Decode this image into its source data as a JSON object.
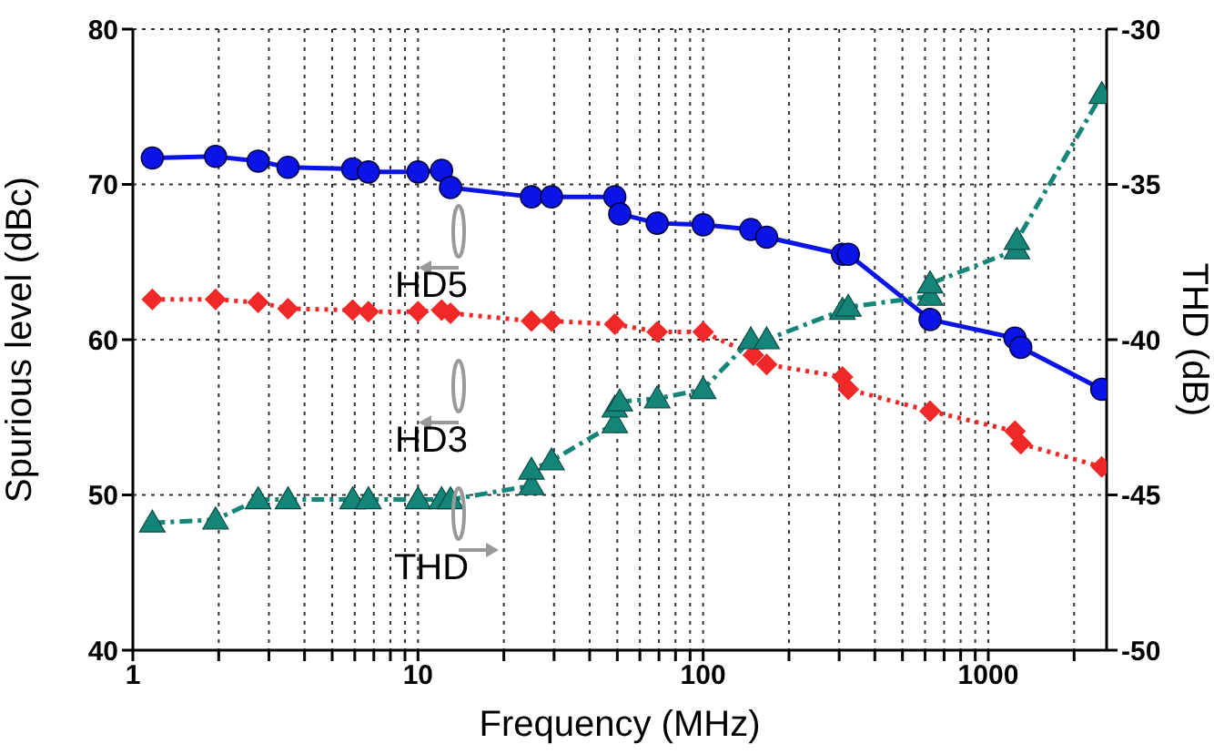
{
  "chart_data": {
    "type": "line",
    "xlabel": "Frequency (MHz)",
    "ylabel": "Spurious level (dBc)",
    "y2label": "THD (dB)",
    "log": "x",
    "grid": true,
    "xlim": [
      1,
      2600
    ],
    "xticks": [
      1,
      {
        "value": 2,
        "label": null
      },
      {
        "value": 3,
        "label": null
      },
      {
        "value": 4,
        "label": null
      },
      {
        "value": 5,
        "label": null
      },
      {
        "value": 6,
        "label": null
      },
      {
        "value": 7,
        "label": null
      },
      {
        "value": 8,
        "label": null
      },
      {
        "value": 9,
        "label": null
      },
      10,
      {
        "value": 20,
        "label": null
      },
      {
        "value": 30,
        "label": null
      },
      {
        "value": 40,
        "label": null
      },
      {
        "value": 50,
        "label": null
      },
      {
        "value": 60,
        "label": null
      },
      {
        "value": 70,
        "label": null
      },
      {
        "value": 80,
        "label": null
      },
      {
        "value": 90,
        "label": null
      },
      100,
      {
        "value": 200,
        "label": null
      },
      {
        "value": 300,
        "label": null
      },
      {
        "value": 400,
        "label": null
      },
      {
        "value": 500,
        "label": null
      },
      {
        "value": 600,
        "label": null
      },
      {
        "value": 700,
        "label": null
      },
      {
        "value": 800,
        "label": null
      },
      {
        "value": 900,
        "label": null
      },
      1000,
      {
        "value": 2000,
        "label": null
      }
    ],
    "ylim": [
      40,
      80
    ],
    "yticks": [
      40,
      50,
      60,
      70,
      80
    ],
    "y2lim": [
      -50,
      -30
    ],
    "y2ticks": [
      -50,
      -45,
      -40,
      -35,
      -30
    ],
    "series": [
      {
        "color": "#0a14e6",
        "marker": "circle",
        "line_style": "solid",
        "x": [
          1.17,
          1.95,
          2.75,
          3.5,
          5.9,
          6.7,
          10,
          12.1,
          13,
          25,
          29.4,
          49,
          51,
          69,
          100,
          147,
          167,
          308,
          323,
          625,
          1240,
          1300,
          2500
        ],
        "values": [
          71.7,
          71.8,
          71.5,
          71.1,
          71.0,
          70.8,
          70.8,
          70.9,
          69.8,
          69.2,
          69.2,
          69.2,
          68.1,
          67.5,
          67.4,
          67.1,
          66.6,
          65.5,
          65.5,
          61.3,
          60.1,
          59.5,
          56.8
        ]
      },
      {
        "color": "#f02828",
        "marker": "diamond",
        "line_style": "dotted",
        "x": [
          1.17,
          1.95,
          2.75,
          3.5,
          5.9,
          6.7,
          10,
          12.1,
          13,
          25,
          29.4,
          49,
          69,
          100,
          150,
          167,
          308,
          323,
          625,
          1240,
          1300,
          2500
        ],
        "values": [
          62.6,
          62.6,
          62.4,
          62.0,
          61.9,
          61.8,
          61.8,
          61.9,
          61.7,
          61.2,
          61.2,
          61.0,
          60.5,
          60.5,
          59.0,
          58.4,
          57.6,
          56.8,
          55.4,
          54.1,
          53.3,
          51.8
        ]
      },
      {
        "color": "#15857a",
        "marker": "triangle",
        "line_style": "dashed",
        "axis": "y2",
        "x": [
          1.17,
          1.95,
          2.75,
          3.5,
          5.9,
          6.7,
          10,
          12.1,
          13,
          25,
          25,
          29.4,
          49,
          49,
          51,
          69,
          100,
          147,
          167,
          308,
          323,
          625,
          625,
          1260,
          1260,
          2500
        ],
        "values": [
          -45.9,
          -45.8,
          -45.15,
          -45.15,
          -45.15,
          -45.15,
          -45.15,
          -45.15,
          -45.15,
          -44.7,
          -44.2,
          -43.9,
          -42.7,
          -42.2,
          -42.0,
          -41.9,
          -41.6,
          -40.0,
          -40.0,
          -39.05,
          -38.95,
          -38.6,
          -38.2,
          -37.1,
          -36.8,
          -32.1
        ]
      }
    ],
    "annotations": [
      "HD5",
      "HD3",
      "THD"
    ]
  }
}
